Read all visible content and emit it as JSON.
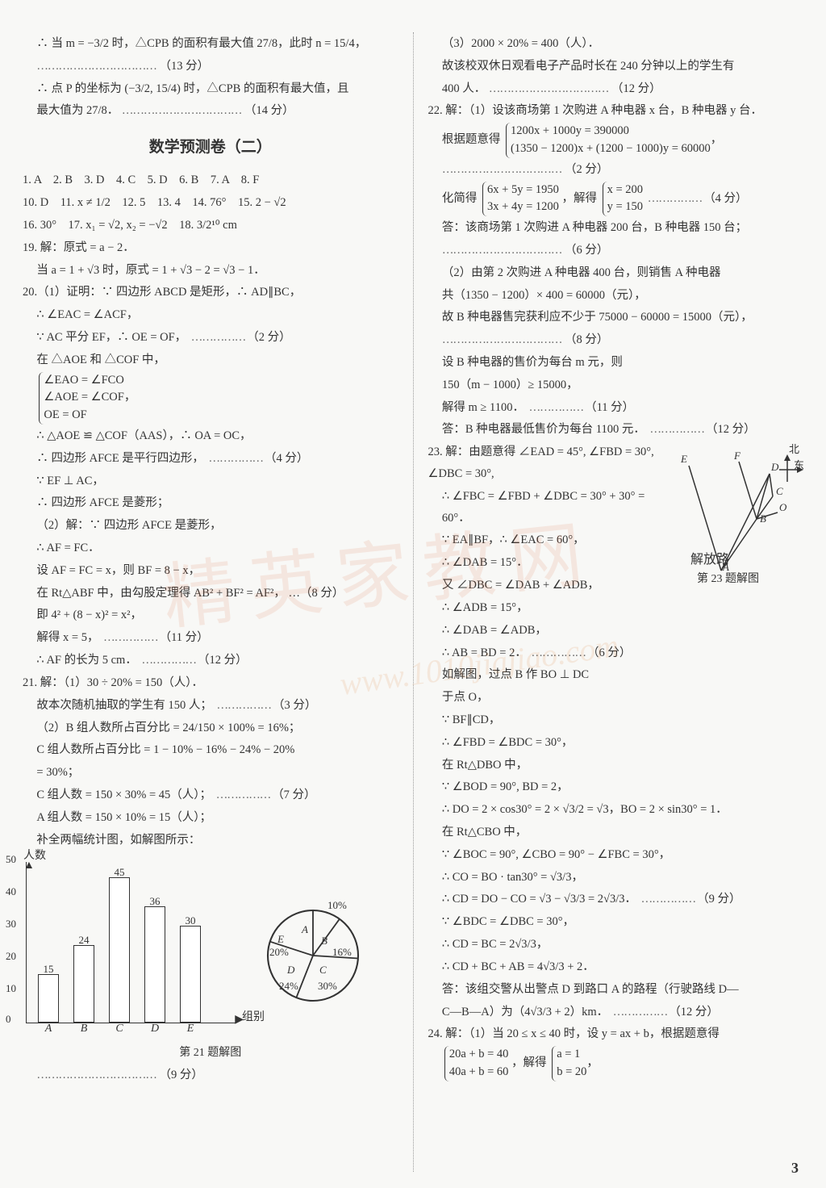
{
  "left": {
    "l1": "∴ 当 m = −3/2 时，△CPB 的面积有最大值 27/8，此时 n = 15/4，",
    "l1s": "（13 分）",
    "l2": "∴ 点 P 的坐标为 (−3/2, 15/4) 时，△CPB 的面积有最大值，且",
    "l3": "最大值为 27/8．",
    "l3s": "（14 分）",
    "title": "数学预测卷（二）",
    "ans1": "1. A　2. B　3. D　4. C　5. D　6. B　7. A　8. F",
    "ans2": "10. D　11. x ≠ 1/2　12. 5　13. 4　14. 76°　15. 2 − √2",
    "ans3": "16. 30°　17. x₁ = √2, x₂ = −√2　18. 3/2¹⁰ cm",
    "q19a": "19. 解：原式 = a − 2．",
    "q19b": "当 a = 1 + √3 时，原式 = 1 + √3 − 2 = √3 − 1．",
    "q20a": "20.（1）证明：∵ 四边形 ABCD 是矩形，∴ AD∥BC，",
    "q20b": "∴ ∠EAC = ∠ACF，",
    "q20c": "∵ AC 平分 EF，∴ OE = OF，",
    "q20cs": "（2 分）",
    "q20d": "在 △AOE 和 △COF 中，",
    "brace1a": "∠EAO = ∠FCO",
    "brace1b": "∠AOE = ∠COF，",
    "brace1c": "OE = OF",
    "q20e": "∴ △AOE ≌ △COF（AAS），∴ OA = OC，",
    "q20f": "∴ 四边形 AFCE 是平行四边形，",
    "q20fs": "（4 分）",
    "q20g": "∵ EF ⊥ AC，",
    "q20h": "∴ 四边形 AFCE 是菱形；",
    "q20i": "（2）解：∵ 四边形 AFCE 是菱形，",
    "q20j": "∴ AF = FC．",
    "q20k": "设 AF = FC = x，则 BF = 8 − x，",
    "q20l": "在 Rt△ABF 中，由勾股定理得 AB² + BF² = AF²， …（8 分）",
    "q20m": "即 4² + (8 − x)² = x²，",
    "q20n": "解得 x = 5，",
    "q20ns": "（11 分）",
    "q20o": "∴ AF 的长为 5 cm．",
    "q20os": "（12 分）",
    "q21a": "21. 解：（1）30 ÷ 20% = 150（人）．",
    "q21b": "故本次随机抽取的学生有 150 人；",
    "q21bs": "（3 分）",
    "q21c": "（2）B 组人数所占百分比 = 24/150 × 100% = 16%；",
    "q21d": "C 组人数所占百分比 = 1 − 10% − 16% − 24% − 20%",
    "q21e": "= 30%；",
    "q21f": "C 组人数 = 150 × 30% = 45（人）；",
    "q21fs": "（7 分）",
    "q21g": "A 组人数 = 150 × 10% = 15（人）；",
    "q21h": "补全两幅统计图，如解图所示：",
    "chart": {
      "yaxis_title": "人数",
      "xaxis_title": "组别",
      "ymax": 50,
      "ytick": 10,
      "categories": [
        "A",
        "B",
        "C",
        "D",
        "E"
      ],
      "values": [
        15,
        24,
        45,
        36,
        30
      ],
      "bar_color": "#ffffff",
      "border_color": "#333333"
    },
    "pie": {
      "slices": [
        {
          "label": "A",
          "pct": "10%",
          "angle": 36
        },
        {
          "label": "B",
          "pct": "16%",
          "angle": 57.6
        },
        {
          "label": "C",
          "pct": "30%",
          "angle": 108
        },
        {
          "label": "D",
          "pct": "24%",
          "angle": 86.4
        },
        {
          "label": "E",
          "pct": "20%",
          "angle": 72
        }
      ],
      "stroke": "#333333"
    },
    "caption": "第 21 题解图",
    "q21end": "（9 分）"
  },
  "right": {
    "r1": "（3）2000 × 20% = 400（人）．",
    "r2": "故该校双休日观看电子产品时长在 240 分钟以上的学生有",
    "r3": "400 人．",
    "r3s": "（12 分）",
    "q22a": "22. 解：（1）设该商场第 1 次购进 A 种电器 x 台，B 种电器 y 台．",
    "q22b": "根据题意得",
    "brace2a": "1200x + 1000y = 390000",
    "brace2b": "(1350 − 1200)x + (1200 − 1000)y = 60000",
    "q22bs": "（2 分）",
    "q22c": "化简得",
    "brace3a": "6x + 5y = 1950",
    "brace3b": "3x + 4y = 1200",
    "q22c2": "，解得",
    "brace4a": "x = 200",
    "brace4b": "y = 150",
    "q22cs": "（4 分）",
    "q22d": "答：该商场第 1 次购进 A 种电器 200 台，B 种电器 150 台；",
    "q22ds": "（6 分）",
    "q22e": "（2）由第 2 次购进 A 种电器 400 台，则销售 A 种电器",
    "q22f": "共（1350 − 1200）× 400 = 60000（元），",
    "q22g": "故 B 种电器售完获利应不少于 75000 − 60000 = 15000（元），",
    "q22gs": "（8 分）",
    "q22h": "设 B 种电器的售价为每台 m 元，则",
    "q22i": "150（m − 1000）≥ 15000，",
    "q22j": "解得 m ≥ 1100．",
    "q22js": "（11 分）",
    "q22k": "答：B 种电器最低售价为每台 1100 元．",
    "q22ks": "（12 分）",
    "q23a": "23. 解：由题意得 ∠EAD = 45°, ∠FBD = 30°, ∠DBC = 30°,",
    "q23b": "∴ ∠FBC = ∠FBD + ∠DBC = 30° + 30° = 60°．",
    "q23c": "∵ EA∥BF，∴ ∠EAC = 60°，",
    "q23d": "∴ ∠DAB = 15°．",
    "q23e": "又 ∠DBC = ∠DAB + ∠ADB，",
    "q23f": "∴ ∠ADB = 15°，",
    "q23g": "∴ ∠DAB = ∠ADB，",
    "q23h": "∴ AB = BD = 2．",
    "q23hs": "（6 分）",
    "q23i": "如解图，过点 B 作 BO ⊥ DC",
    "q23j": "于点 O，",
    "q23k": "∵ BF∥CD，",
    "q23l": "∴ ∠FBD = ∠BDC = 30°，",
    "q23m": "在 Rt△DBO 中，",
    "q23n": "∵ ∠BOD = 90°, BD = 2，",
    "q23o": "∴ DO = 2 × cos30° = 2 × √3/2 = √3，BO = 2 × sin30° = 1．",
    "q23p": "在 Rt△CBO 中，",
    "q23q": "∵ ∠BOC = 90°, ∠CBO = 90° − ∠FBC = 30°，",
    "q23r": "∴ CO = BO · tan30° = √3/3，",
    "q23s": "∴ CD = DO − CO = √3 − √3/3 = 2√3/3．",
    "q23ss": "（9 分）",
    "q23t": "∵ ∠BDC = ∠DBC = 30°，",
    "q23u": "∴ CD = BC = 2√3/3，",
    "q23v": "∴ CD + BC + AB = 4√3/3 + 2．",
    "q23w": "答：该组交警从出警点 D 到路口 A 的路程（行驶路线 D—",
    "q23x": "C—B—A）为（4√3/3 + 2）km．",
    "q23xs": "（12 分）",
    "q24a": "24. 解：（1）当 20 ≤ x ≤ 40 时，设 y = ax + b，根据题意得",
    "brace5a": "20a + b = 40",
    "brace5b": "40a + b = 60",
    "q24b": "，解得",
    "brace6a": "a = 1",
    "brace6b": "b = 20",
    "diagram": {
      "caption": "第 23 题解图",
      "north": "北",
      "east": "东",
      "road": "解放路",
      "labels": [
        "E",
        "F",
        "D",
        "C",
        "O",
        "B",
        "A"
      ]
    }
  },
  "page_number": "3"
}
